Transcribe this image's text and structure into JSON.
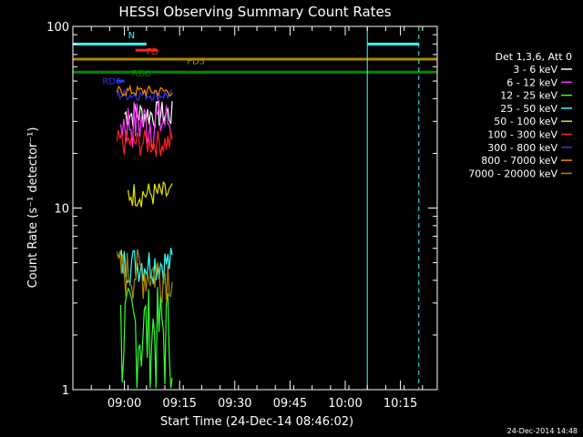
{
  "chart_data": {
    "type": "line",
    "title": "HESSI Observing Summary Count Rates",
    "xlabel": "Start Time (24-Dec-14 08:46:02)",
    "ylabel": "Count Rate (s⁻¹ detector⁻¹)",
    "yscale": "log",
    "ylim": [
      1,
      100
    ],
    "xlim": [
      "08:46",
      "10:25"
    ],
    "x_ticks": [
      "09:00",
      "09:15",
      "09:30",
      "09:45",
      "10:00",
      "10:15"
    ],
    "y_ticks": [
      "1",
      "10",
      "100"
    ],
    "legend": {
      "title": "Det 1,3,6, Att 0",
      "placement": "right",
      "entries": [
        {
          "label": "3 - 6 keV",
          "color": "#ffffff"
        },
        {
          "label": "6 - 12 keV",
          "color": "#ff33ff"
        },
        {
          "label": "12 - 25 keV",
          "color": "#33ff33"
        },
        {
          "label": "25 - 50 keV",
          "color": "#33ffff"
        },
        {
          "label": "50 - 100 keV",
          "color": "#e6e600"
        },
        {
          "label": "100 - 300 keV",
          "color": "#ff2020"
        },
        {
          "label": "300 - 800 keV",
          "color": "#3333ff"
        },
        {
          "label": "800 - 7000 keV",
          "color": "#ff8800"
        },
        {
          "label": "7000 - 20000 keV",
          "color": "#aa8800"
        }
      ]
    },
    "flags": [
      {
        "label": "N",
        "color": "#33ffff",
        "segments": [
          [
            "08:46",
            "09:06"
          ],
          [
            "10:06",
            "10:20"
          ]
        ]
      },
      {
        "label": "FD",
        "color": "#ff2020",
        "segments": [
          [
            "09:03",
            "09:09"
          ]
        ]
      },
      {
        "label": "FD3",
        "color": "#aa8800",
        "segments": [
          [
            "08:46",
            "10:25"
          ]
        ]
      },
      {
        "label": "RD0",
        "color": "#008800",
        "segments": [
          [
            "08:46",
            "10:25"
          ]
        ]
      },
      {
        "label": "RD6",
        "color": "#3333ff",
        "segments": [
          [
            "08:58",
            "09:00"
          ]
        ]
      }
    ],
    "vertical_markers": [
      {
        "time": "10:06",
        "style": "solid",
        "color": "#33ffff"
      },
      {
        "time": "10:20",
        "style": "dashed",
        "color": "#33ffff"
      }
    ],
    "series": [
      {
        "name": "3 - 6 keV",
        "color": "#ffffff",
        "x_start": "09:00",
        "x_end": "09:13",
        "base": 33,
        "spread": 6
      },
      {
        "name": "6 - 12 keV",
        "color": "#ff33ff",
        "x_start": "08:59",
        "x_end": "09:13",
        "base": 30,
        "spread": 10
      },
      {
        "name": "12 - 25 keV",
        "color": "#33ff33",
        "x_start": "08:59",
        "x_end": "09:13",
        "base": 2.2,
        "spread": 1.5
      },
      {
        "name": "25 - 50 keV",
        "color": "#33ffff",
        "x_start": "08:58",
        "x_end": "09:13",
        "base": 5,
        "spread": 1.2
      },
      {
        "name": "50 - 100 keV",
        "color": "#e6e600",
        "x_start": "09:01",
        "x_end": "09:13",
        "base": 12,
        "spread": 2
      },
      {
        "name": "100 - 300 keV",
        "color": "#ff2020",
        "x_start": "08:58",
        "x_end": "09:13",
        "base": 23,
        "spread": 4
      },
      {
        "name": "300 - 800 keV",
        "color": "#3333ff",
        "x_start": "08:58",
        "x_end": "09:13",
        "base": 42,
        "spread": 3
      },
      {
        "name": "800 - 7000 keV",
        "color": "#ff8800",
        "x_start": "08:58",
        "x_end": "09:13",
        "base": 44,
        "spread": 3
      },
      {
        "name": "7000 - 20000 keV",
        "color": "#aa8800",
        "x_start": "08:58",
        "x_end": "09:13",
        "base": 4.5,
        "spread": 1.5
      }
    ]
  },
  "footer": {
    "timestamp": "24-Dec-2014 14:48"
  }
}
